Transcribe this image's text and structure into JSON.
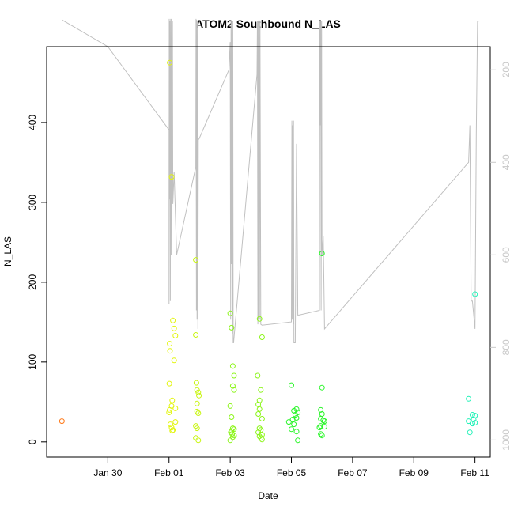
{
  "chart_data": {
    "type": "scatter",
    "title": "ATOM2 Southbound N_LAS",
    "xlabel": "Date",
    "ylabel": "N_LAS",
    "x_axis_type": "date",
    "xlim": [
      "2020-01-28T00:00",
      "2020-02-11T12:00"
    ],
    "ylim": [
      -19,
      495
    ],
    "y_ticks": [
      0,
      100,
      200,
      300,
      400
    ],
    "x_ticks": [
      {
        "label": "Jan 30",
        "date": "2020-01-30"
      },
      {
        "label": "Feb 01",
        "date": "2020-02-01"
      },
      {
        "label": "Feb 03",
        "date": "2020-02-03"
      },
      {
        "label": "Feb 05",
        "date": "2020-02-05"
      },
      {
        "label": "Feb 07",
        "date": "2020-02-07"
      },
      {
        "label": "Feb 09",
        "date": "2020-02-09"
      },
      {
        "label": "Feb 11",
        "date": "2020-02-11"
      }
    ],
    "y2_ticks": [
      200,
      400,
      600,
      800,
      1000
    ],
    "y2lim": [
      1037,
      150
    ],
    "grid": false,
    "legend": "none",
    "point_style": "open circle",
    "colors": {
      "orange": "#ff7a1a",
      "yellow": "#e2f50e",
      "yellow_green": "#c8f510",
      "light_green": "#8cf51a",
      "green": "#2af52a",
      "cyan_green": "#22f2b8",
      "line": "#c0c0c0",
      "right_axis": "#c8c8c8"
    },
    "series": [
      {
        "color": "orange",
        "points": [
          [
            "2020-01-28T12:00",
            26
          ]
        ]
      },
      {
        "color": "yellow",
        "points": [
          [
            "2020-02-01T00:30",
            475
          ],
          [
            "2020-02-01T02:00",
            332
          ],
          [
            "2020-02-01T03:00",
            152
          ],
          [
            "2020-02-01T04:00",
            142
          ],
          [
            "2020-02-01T05:00",
            133
          ],
          [
            "2020-02-01T00:30",
            123
          ],
          [
            "2020-02-01T00:45",
            114
          ],
          [
            "2020-02-01T04:00",
            102
          ],
          [
            "2020-02-01T00:15",
            73
          ],
          [
            "2020-02-01T02:30",
            52
          ],
          [
            "2020-02-01T02:00",
            45
          ],
          [
            "2020-02-01T05:00",
            42
          ],
          [
            "2020-02-01T00:30",
            40
          ],
          [
            "2020-02-01T00:00",
            37
          ],
          [
            "2020-02-01T05:00",
            25
          ],
          [
            "2020-02-01T01:00",
            22
          ],
          [
            "2020-02-01T02:00",
            18
          ],
          [
            "2020-02-01T03:00",
            15
          ],
          [
            "2020-02-01T02:30",
            14
          ]
        ]
      },
      {
        "color": "yellow_green",
        "points": [
          [
            "2020-02-01T21:00",
            228
          ],
          [
            "2020-02-01T21:00",
            134
          ],
          [
            "2020-02-01T21:30",
            74
          ],
          [
            "2020-02-01T22:00",
            65
          ],
          [
            "2020-02-01T23:00",
            62
          ],
          [
            "2020-02-01T23:30",
            58
          ],
          [
            "2020-02-01T22:00",
            48
          ],
          [
            "2020-02-01T22:00",
            38
          ],
          [
            "2020-02-01T23:00",
            36
          ],
          [
            "2020-02-01T21:00",
            20
          ],
          [
            "2020-02-01T22:00",
            17
          ],
          [
            "2020-02-01T21:00",
            5
          ],
          [
            "2020-02-01T23:00",
            2
          ]
        ]
      },
      {
        "color": "light_green",
        "points": [
          [
            "2020-02-03T00:00",
            161
          ],
          [
            "2020-02-03T01:00",
            143
          ],
          [
            "2020-02-03T02:00",
            95
          ],
          [
            "2020-02-03T03:00",
            83
          ],
          [
            "2020-02-03T02:00",
            70
          ],
          [
            "2020-02-03T03:00",
            65
          ],
          [
            "2020-02-03T00:00",
            45
          ],
          [
            "2020-02-03T01:00",
            31
          ],
          [
            "2020-02-03T02:00",
            17
          ],
          [
            "2020-02-03T03:00",
            16
          ],
          [
            "2020-02-03T01:00",
            14
          ],
          [
            "2020-02-03T00:30",
            12
          ],
          [
            "2020-02-03T03:00",
            8
          ],
          [
            "2020-02-03T02:00",
            6
          ],
          [
            "2020-02-03T00:00",
            2
          ],
          [
            "2020-02-03T01:30",
            10
          ]
        ]
      },
      {
        "color": "light_green",
        "points": [
          [
            "2020-02-03T23:00",
            154
          ],
          [
            "2020-02-04T01:00",
            131
          ],
          [
            "2020-02-03T21:30",
            83
          ],
          [
            "2020-02-04T00:00",
            65
          ],
          [
            "2020-02-03T23:00",
            52
          ],
          [
            "2020-02-03T22:00",
            47
          ],
          [
            "2020-02-03T23:00",
            41
          ],
          [
            "2020-02-03T22:00",
            35
          ],
          [
            "2020-02-04T01:00",
            29
          ],
          [
            "2020-02-03T23:00",
            17
          ],
          [
            "2020-02-04T00:00",
            15
          ],
          [
            "2020-02-03T22:00",
            12
          ],
          [
            "2020-02-04T01:00",
            9
          ],
          [
            "2020-02-03T23:00",
            7
          ],
          [
            "2020-02-04T00:00",
            5
          ],
          [
            "2020-02-04T01:00",
            3
          ]
        ]
      },
      {
        "color": "green",
        "points": [
          [
            "2020-02-06T00:00",
            236
          ],
          [
            "2020-02-05T00:00",
            71
          ],
          [
            "2020-02-06T00:00",
            68
          ],
          [
            "2020-02-05T04:00",
            41
          ],
          [
            "2020-02-05T02:00",
            39
          ],
          [
            "2020-02-05T05:00",
            37
          ],
          [
            "2020-02-05T23:00",
            40
          ],
          [
            "2020-02-06T00:00",
            35
          ],
          [
            "2020-02-05T04:00",
            30
          ],
          [
            "2020-02-05T23:00",
            29
          ],
          [
            "2020-02-06T01:00",
            27
          ],
          [
            "2020-02-04T22:00",
            25
          ],
          [
            "2020-02-05T02:00",
            22
          ],
          [
            "2020-02-05T23:00",
            20
          ],
          [
            "2020-02-05T22:00",
            18
          ],
          [
            "2020-02-05T00:00",
            16
          ],
          [
            "2020-02-05T04:00",
            13
          ],
          [
            "2020-02-05T23:00",
            10
          ],
          [
            "2020-02-06T00:00",
            8
          ],
          [
            "2020-02-05T05:00",
            2
          ],
          [
            "2020-02-05T01:00",
            28
          ],
          [
            "2020-02-05T03:00",
            34
          ],
          [
            "2020-02-06T02:00",
            26
          ],
          [
            "2020-02-06T02:00",
            19
          ]
        ]
      },
      {
        "color": "cyan_green",
        "points": [
          [
            "2020-02-11T00:00",
            185
          ],
          [
            "2020-02-10T19:00",
            54
          ],
          [
            "2020-02-10T22:00",
            34
          ],
          [
            "2020-02-11T00:00",
            33
          ],
          [
            "2020-02-10T23:00",
            28
          ],
          [
            "2020-02-10T19:00",
            26
          ],
          [
            "2020-02-11T00:00",
            24
          ],
          [
            "2020-02-10T22:00",
            23
          ],
          [
            "2020-02-10T20:00",
            12
          ]
        ]
      }
    ],
    "secondary_line": {
      "axis": "right",
      "color": "line",
      "points": [
        [
          "2020-01-28T12:00",
          92
        ],
        [
          "2020-01-30T00:00",
          150
        ],
        [
          "2020-02-01T00:00",
          330
        ],
        [
          "2020-02-01T00:00",
          707
        ],
        [
          "2020-02-01T00:10",
          90
        ],
        [
          "2020-02-01T00:20",
          480
        ],
        [
          "2020-02-01T00:40",
          95
        ],
        [
          "2020-02-01T01:00",
          700
        ],
        [
          "2020-02-01T01:20",
          90
        ],
        [
          "2020-02-01T01:40",
          600
        ],
        [
          "2020-02-01T02:00",
          90
        ],
        [
          "2020-02-01T02:20",
          520
        ],
        [
          "2020-02-01T02:40",
          95
        ],
        [
          "2020-02-01T03:00",
          490
        ],
        [
          "2020-02-01T04:00",
          420
        ],
        [
          "2020-02-01T06:00",
          600
        ],
        [
          "2020-02-01T21:00",
          410
        ],
        [
          "2020-02-01T21:10",
          90
        ],
        [
          "2020-02-01T21:30",
          720
        ],
        [
          "2020-02-01T21:40",
          92
        ],
        [
          "2020-02-01T22:00",
          740
        ],
        [
          "2020-02-01T22:20",
          95
        ],
        [
          "2020-02-01T22:40",
          760
        ],
        [
          "2020-02-01T23:00",
          350
        ],
        [
          "2020-02-01T23:30",
          350
        ],
        [
          "2020-02-02T23:00",
          200
        ],
        [
          "2020-02-03T00:00",
          140
        ],
        [
          "2020-02-03T00:20",
          740
        ],
        [
          "2020-02-03T00:40",
          95
        ],
        [
          "2020-02-03T01:00",
          620
        ],
        [
          "2020-02-03T01:20",
          95
        ],
        [
          "2020-02-03T01:40",
          770
        ],
        [
          "2020-02-03T02:00",
          95
        ],
        [
          "2020-02-03T02:20",
          790
        ],
        [
          "2020-02-03T02:40",
          790
        ],
        [
          "2020-02-03T21:00",
          210
        ],
        [
          "2020-02-03T21:20",
          95
        ],
        [
          "2020-02-03T21:40",
          750
        ],
        [
          "2020-02-03T22:00",
          95
        ],
        [
          "2020-02-03T22:20",
          740
        ],
        [
          "2020-02-03T22:40",
          95
        ],
        [
          "2020-02-03T23:00",
          740
        ],
        [
          "2020-02-03T23:20",
          95
        ],
        [
          "2020-02-04T00:00",
          750
        ],
        [
          "2020-02-04T01:00",
          752
        ],
        [
          "2020-02-05T00:00",
          745
        ],
        [
          "2020-02-05T00:20",
          310
        ],
        [
          "2020-02-05T00:40",
          740
        ],
        [
          "2020-02-05T01:00",
          320
        ],
        [
          "2020-02-05T01:20",
          750
        ],
        [
          "2020-02-05T01:40",
          310
        ],
        [
          "2020-02-05T02:00",
          790
        ],
        [
          "2020-02-05T03:00",
          790
        ],
        [
          "2020-02-05T04:00",
          360
        ],
        [
          "2020-02-05T05:00",
          730
        ],
        [
          "2020-02-05T06:00",
          730
        ],
        [
          "2020-02-05T22:00",
          720
        ],
        [
          "2020-02-05T22:20",
          95
        ],
        [
          "2020-02-05T22:40",
          320
        ],
        [
          "2020-02-05T23:00",
          95
        ],
        [
          "2020-02-05T23:20",
          720
        ],
        [
          "2020-02-05T23:40",
          95
        ],
        [
          "2020-02-06T00:00",
          600
        ],
        [
          "2020-02-06T01:00",
          560
        ],
        [
          "2020-02-06T02:00",
          760
        ],
        [
          "2020-02-10T19:00",
          400
        ],
        [
          "2020-02-10T20:00",
          320
        ],
        [
          "2020-02-10T21:00",
          700
        ],
        [
          "2020-02-10T22:00",
          700
        ],
        [
          "2020-02-11T00:00",
          760
        ],
        [
          "2020-02-11T01:00",
          340
        ],
        [
          "2020-02-11T02:00",
          95
        ],
        [
          "2020-02-11T03:00",
          95
        ]
      ]
    }
  }
}
